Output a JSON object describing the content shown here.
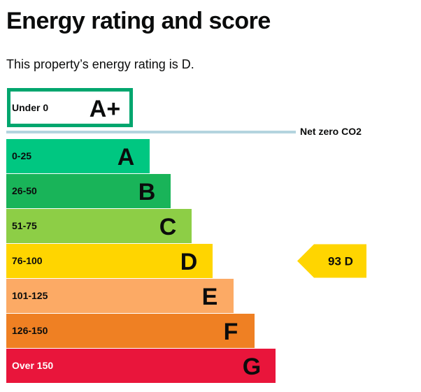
{
  "page": {
    "title": "Energy rating and score",
    "subtitle": "This property’s energy rating is D."
  },
  "chart_data": {
    "type": "bar",
    "bands": [
      {
        "range": "Under 0",
        "letter": "A+",
        "color": "#ffffff",
        "border": "#00a66e",
        "outlined": true
      },
      {
        "range": "0-25",
        "letter": "A",
        "color": "#00c781"
      },
      {
        "range": "26-50",
        "letter": "B",
        "color": "#19b459"
      },
      {
        "range": "51-75",
        "letter": "C",
        "color": "#8dce46"
      },
      {
        "range": "76-100",
        "letter": "D",
        "color": "#ffd500"
      },
      {
        "range": "101-125",
        "letter": "E",
        "color": "#fcaa65"
      },
      {
        "range": "126-150",
        "letter": "F",
        "color": "#ef8023"
      },
      {
        "range": "Over 150",
        "letter": "G",
        "color": "#e9153b"
      }
    ],
    "net_zero": {
      "label": "Net zero CO2",
      "color": "#b4d4df"
    },
    "current_rating": {
      "score": 93,
      "letter": "D",
      "band": "D",
      "color": "#ffd500"
    }
  }
}
